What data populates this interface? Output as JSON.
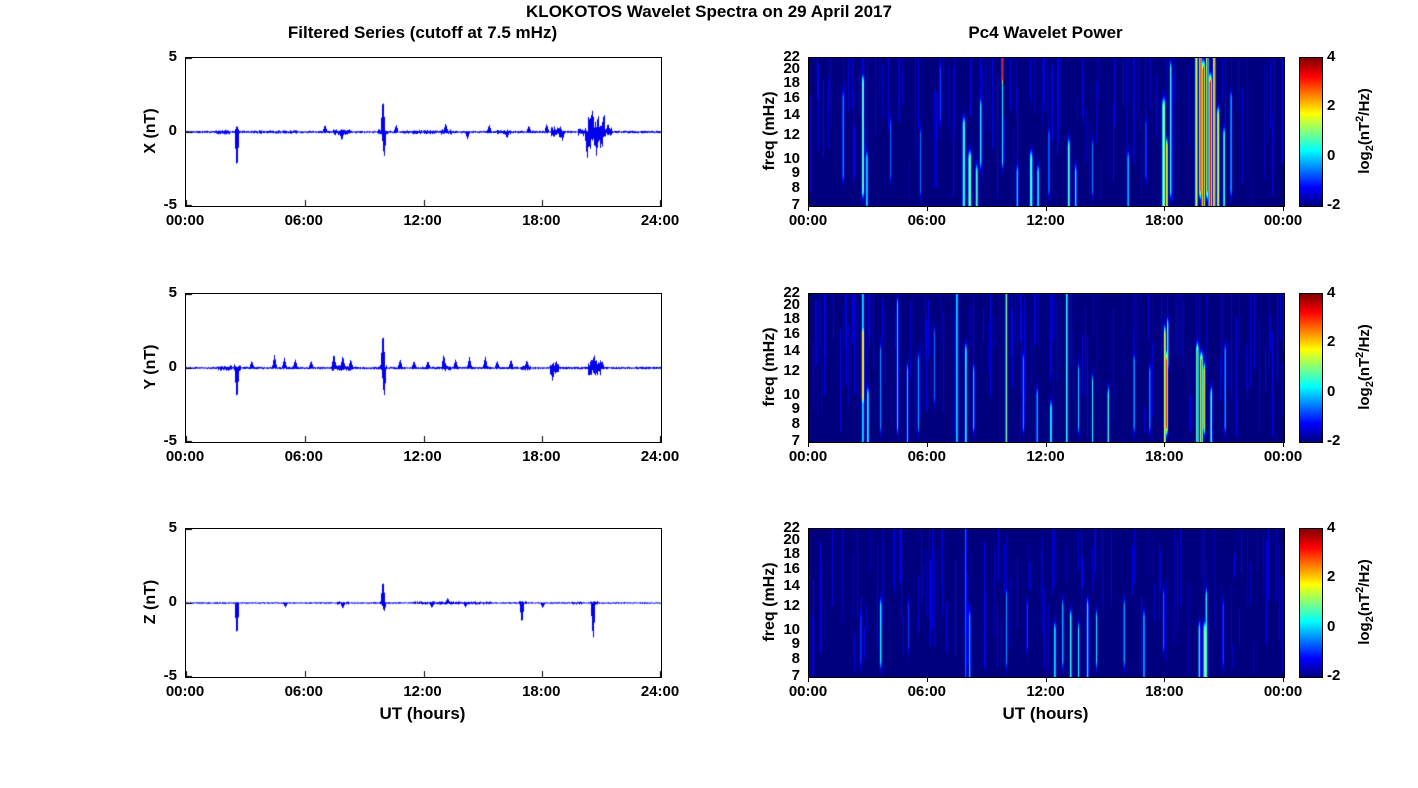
{
  "figure": {
    "title": "KLOKOTOS Wavelet Spectra on 29 April 2017",
    "left_column_title": "Filtered Series (cutoff at 7.5 mHz)",
    "right_column_title": "Pc4 Wavelet Power",
    "x_axis_label": "UT (hours)"
  },
  "colorbar": {
    "ticks": [
      "4",
      "2",
      "0",
      "-2"
    ],
    "clim": [
      -2,
      4
    ],
    "colormap": "jet",
    "label": {
      "prefix": "log",
      "sub": "2",
      "mid": "(nT",
      "sup": "2",
      "suffix": "/Hz)"
    }
  },
  "chart_data": [
    {
      "type": "line",
      "component": "X",
      "ylabel": "X (nT)",
      "ylim": [
        -5,
        5
      ],
      "yticks": [
        "5",
        "0",
        "-5"
      ],
      "xlim_hours": [
        0,
        24
      ],
      "xtick_labels": [
        "00:00",
        "06:00",
        "12:00",
        "18:00",
        "24:00"
      ],
      "line_color": "#0000ee",
      "base_noise_nT": 0.09,
      "noise_bursts": [
        [
          1.5,
          2.2,
          0.17
        ],
        [
          3.4,
          5.6,
          0.12
        ],
        [
          7.4,
          8.3,
          0.22
        ],
        [
          9.7,
          10.2,
          0.2
        ],
        [
          11.0,
          12.6,
          0.15
        ],
        [
          12.8,
          13.5,
          0.2
        ],
        [
          15.7,
          16.4,
          0.17
        ],
        [
          18.4,
          18.95,
          0.38
        ],
        [
          19.8,
          20.25,
          0.3
        ],
        [
          20.3,
          21.15,
          1.15
        ],
        [
          21.15,
          21.5,
          0.3
        ]
      ],
      "spikes": [
        [
          2.55,
          -2.6
        ],
        [
          2.55,
          0.45
        ],
        [
          7.0,
          0.5
        ],
        [
          7.85,
          -0.6
        ],
        [
          9.93,
          2.35
        ],
        [
          9.99,
          -1.8
        ],
        [
          10.6,
          0.5
        ],
        [
          13.1,
          0.6
        ],
        [
          14.2,
          -0.5
        ],
        [
          15.3,
          0.5
        ],
        [
          16.2,
          -0.45
        ],
        [
          17.3,
          0.45
        ],
        [
          18.2,
          0.55
        ],
        [
          19.0,
          -0.6
        ],
        [
          20.25,
          -1.9
        ],
        [
          20.5,
          1.6
        ],
        [
          20.72,
          -1.65
        ],
        [
          21.3,
          0.6
        ]
      ]
    },
    {
      "type": "line",
      "component": "Y",
      "ylabel": "Y (nT)",
      "ylim": [
        -5,
        5
      ],
      "yticks": [
        "5",
        "0",
        "-5"
      ],
      "xlim_hours": [
        0,
        24
      ],
      "xtick_labels": [
        "00:00",
        "06:00",
        "12:00",
        "18:00",
        "24:00"
      ],
      "line_color": "#0000ee",
      "base_noise_nT": 0.09,
      "noise_bursts": [
        [
          1.6,
          2.3,
          0.2
        ],
        [
          2.4,
          2.75,
          0.25
        ],
        [
          7.3,
          8.4,
          0.2
        ],
        [
          9.8,
          10.15,
          0.2
        ],
        [
          12.9,
          13.35,
          0.2
        ],
        [
          16.9,
          17.4,
          0.18
        ],
        [
          18.35,
          18.8,
          0.5
        ],
        [
          20.3,
          20.95,
          0.55
        ]
      ],
      "spikes": [
        [
          2.55,
          -2.25
        ],
        [
          3.3,
          0.5
        ],
        [
          4.45,
          0.9
        ],
        [
          4.95,
          0.7
        ],
        [
          5.5,
          0.6
        ],
        [
          6.3,
          0.5
        ],
        [
          7.45,
          1.0
        ],
        [
          7.9,
          0.85
        ],
        [
          8.3,
          0.6
        ],
        [
          9.93,
          2.5
        ],
        [
          9.99,
          -2.05
        ],
        [
          10.8,
          0.6
        ],
        [
          11.5,
          0.5
        ],
        [
          12.2,
          0.5
        ],
        [
          13.0,
          0.95
        ],
        [
          13.6,
          0.6
        ],
        [
          14.3,
          0.75
        ],
        [
          15.1,
          0.8
        ],
        [
          15.7,
          0.5
        ],
        [
          16.4,
          0.6
        ],
        [
          17.2,
          0.55
        ],
        [
          18.5,
          -0.9
        ],
        [
          20.6,
          0.95
        ],
        [
          21.0,
          0.5
        ]
      ]
    },
    {
      "type": "line",
      "component": "Z",
      "ylabel": "Z (nT)",
      "ylim": [
        -5,
        5
      ],
      "yticks": [
        "5",
        "0",
        "-5"
      ],
      "xlim_hours": [
        0,
        24
      ],
      "xtick_labels": [
        "00:00",
        "06:00",
        "12:00",
        "18:00",
        "24:00"
      ],
      "line_color": "#0000ee",
      "base_noise_nT": 0.06,
      "noise_bursts": [
        [
          7.6,
          8.2,
          0.11
        ],
        [
          9.8,
          10.1,
          0.12
        ],
        [
          11.5,
          15.5,
          0.11
        ],
        [
          16.8,
          17.2,
          0.14
        ],
        [
          19.5,
          20.0,
          0.11
        ],
        [
          20.4,
          20.8,
          0.16
        ]
      ],
      "spikes": [
        [
          2.55,
          -2.35
        ],
        [
          5.0,
          -0.3
        ],
        [
          7.9,
          -0.4
        ],
        [
          9.93,
          1.6
        ],
        [
          9.99,
          -0.6
        ],
        [
          12.4,
          -0.35
        ],
        [
          13.2,
          0.35
        ],
        [
          14.1,
          -0.3
        ],
        [
          16.95,
          -1.45
        ],
        [
          18.0,
          -0.35
        ],
        [
          20.55,
          -2.6
        ]
      ]
    },
    {
      "type": "heatmap",
      "component": "X",
      "ylabel": "freq (mHz)",
      "yscale": "log",
      "ylim_mhz": [
        7,
        22
      ],
      "yticks": [
        "22",
        "20",
        "18",
        "16",
        "14",
        "12",
        "10",
        "9",
        "8",
        "7"
      ],
      "xlim_hours": [
        0,
        24
      ],
      "xtick_labels": [
        "00:00",
        "06:00",
        "12:00",
        "18:00",
        "00:00"
      ],
      "clim": [
        -2,
        4
      ],
      "background_value": -2,
      "events": [
        [
          1.7,
          9,
          16,
          -0.3,
          0.05
        ],
        [
          2.7,
          8,
          18,
          1.2,
          0.06
        ],
        [
          2.9,
          7,
          10,
          0.4,
          0.05
        ],
        [
          4.1,
          9,
          13,
          -0.6,
          0.04
        ],
        [
          5.6,
          8,
          12,
          -0.5,
          0.04
        ],
        [
          6.6,
          14,
          20,
          -0.6,
          0.04
        ],
        [
          7.8,
          7,
          13,
          0.9,
          0.07
        ],
        [
          8.1,
          7,
          10,
          1.4,
          0.08
        ],
        [
          8.45,
          7,
          9,
          0.9,
          0.06
        ],
        [
          8.65,
          10,
          15,
          0.4,
          0.05
        ],
        [
          9.75,
          19,
          22,
          3.1,
          0.04
        ],
        [
          9.75,
          10,
          19,
          0.3,
          0.04
        ],
        [
          10.5,
          7,
          9,
          0.2,
          0.05
        ],
        [
          11.2,
          7,
          10,
          1.1,
          0.07
        ],
        [
          11.55,
          7,
          9,
          0.5,
          0.05
        ],
        [
          12.1,
          8,
          12,
          -0.2,
          0.04
        ],
        [
          13.1,
          7,
          11,
          0.9,
          0.06
        ],
        [
          13.45,
          7,
          9,
          0.4,
          0.05
        ],
        [
          14.3,
          8,
          11,
          -0.4,
          0.04
        ],
        [
          16.1,
          7,
          10,
          0.1,
          0.05
        ],
        [
          17.0,
          9,
          13,
          -0.5,
          0.04
        ],
        [
          17.9,
          7,
          15,
          1.7,
          0.08
        ],
        [
          18.05,
          7,
          11,
          2.1,
          0.05
        ],
        [
          18.25,
          8,
          20,
          0.7,
          0.05
        ],
        [
          19.55,
          7,
          22,
          1.8,
          0.06
        ],
        [
          19.75,
          8,
          22,
          2.8,
          0.06
        ],
        [
          19.9,
          7,
          20,
          3.4,
          0.08
        ],
        [
          20.1,
          8,
          22,
          3.1,
          0.06
        ],
        [
          20.25,
          7,
          18,
          3.5,
          0.08
        ],
        [
          20.45,
          7,
          22,
          2.4,
          0.06
        ],
        [
          20.65,
          7,
          14,
          1.8,
          0.06
        ],
        [
          20.95,
          7,
          12,
          0.9,
          0.05
        ],
        [
          21.3,
          8,
          16,
          0.2,
          0.04
        ]
      ]
    },
    {
      "type": "heatmap",
      "component": "Y",
      "ylabel": "freq (mHz)",
      "yscale": "log",
      "ylim_mhz": [
        7,
        22
      ],
      "yticks": [
        "22",
        "20",
        "18",
        "16",
        "14",
        "12",
        "10",
        "9",
        "8",
        "7"
      ],
      "xlim_hours": [
        0,
        24
      ],
      "xtick_labels": [
        "00:00",
        "06:00",
        "12:00",
        "18:00",
        "00:00"
      ],
      "clim": [
        -2,
        4
      ],
      "background_value": -2,
      "events": [
        [
          2.7,
          10,
          16,
          2.5,
          0.06
        ],
        [
          2.7,
          7,
          22,
          0.5,
          0.05
        ],
        [
          2.95,
          7,
          10,
          0.7,
          0.05
        ],
        [
          3.6,
          8,
          14,
          -0.2,
          0.04
        ],
        [
          4.45,
          8,
          20,
          0.2,
          0.04
        ],
        [
          4.95,
          7,
          12,
          0.1,
          0.04
        ],
        [
          5.5,
          8,
          13,
          -0.1,
          0.04
        ],
        [
          6.3,
          10,
          16,
          -0.4,
          0.04
        ],
        [
          7.45,
          7,
          22,
          0.4,
          0.05
        ],
        [
          7.9,
          7,
          14,
          0.7,
          0.05
        ],
        [
          8.3,
          8,
          12,
          0.2,
          0.04
        ],
        [
          9.95,
          7,
          22,
          1.1,
          0.05
        ],
        [
          10.8,
          8,
          13,
          -0.1,
          0.04
        ],
        [
          11.5,
          7,
          10,
          0.2,
          0.04
        ],
        [
          12.2,
          7,
          9,
          0.7,
          0.05
        ],
        [
          13.0,
          7,
          22,
          0.7,
          0.05
        ],
        [
          13.6,
          8,
          12,
          0.1,
          0.04
        ],
        [
          14.3,
          7,
          11,
          0.4,
          0.04
        ],
        [
          15.1,
          7,
          10,
          0.7,
          0.05
        ],
        [
          16.4,
          8,
          13,
          0.1,
          0.04
        ],
        [
          17.2,
          8,
          12,
          -0.1,
          0.04
        ],
        [
          17.95,
          7,
          16,
          1.9,
          0.05
        ],
        [
          18.05,
          8,
          13,
          3.4,
          0.05
        ],
        [
          18.1,
          13,
          17,
          1.4,
          0.04
        ],
        [
          19.6,
          7,
          14,
          2.6,
          0.06
        ],
        [
          19.8,
          7,
          13,
          2.9,
          0.07
        ],
        [
          19.95,
          8,
          12,
          2.1,
          0.05
        ],
        [
          20.3,
          7,
          10,
          1.1,
          0.05
        ],
        [
          21.0,
          8,
          14,
          0.1,
          0.04
        ]
      ]
    },
    {
      "type": "heatmap",
      "component": "Z",
      "ylabel": "freq (mHz)",
      "yscale": "log",
      "ylim_mhz": [
        7,
        22
      ],
      "yticks": [
        "22",
        "20",
        "18",
        "16",
        "14",
        "12",
        "10",
        "9",
        "8",
        "7"
      ],
      "xlim_hours": [
        0,
        24
      ],
      "xtick_labels": [
        "00:00",
        "06:00",
        "12:00",
        "18:00",
        "00:00"
      ],
      "clim": [
        -2,
        4
      ],
      "background_value": -2,
      "events": [
        [
          2.6,
          8,
          11,
          -0.6,
          0.04
        ],
        [
          3.6,
          8,
          12,
          0.4,
          0.05
        ],
        [
          5.0,
          9,
          12,
          -0.9,
          0.03
        ],
        [
          7.9,
          7,
          22,
          -0.4,
          0.04
        ],
        [
          8.1,
          7,
          11,
          0.2,
          0.04
        ],
        [
          9.95,
          8,
          13,
          -0.3,
          0.04
        ],
        [
          11.0,
          9,
          12,
          -0.7,
          0.03
        ],
        [
          12.4,
          7,
          10,
          0.5,
          0.05
        ],
        [
          12.8,
          8,
          12,
          0.2,
          0.04
        ],
        [
          13.2,
          7,
          11,
          0.7,
          0.05
        ],
        [
          13.6,
          7,
          10,
          0.4,
          0.04
        ],
        [
          14.05,
          7,
          12,
          0.5,
          0.05
        ],
        [
          14.5,
          8,
          11,
          0.2,
          0.04
        ],
        [
          15.9,
          8,
          12,
          0.1,
          0.04
        ],
        [
          16.9,
          7,
          11,
          0.3,
          0.04
        ],
        [
          17.9,
          9,
          13,
          -0.4,
          0.04
        ],
        [
          19.7,
          7,
          10,
          0.8,
          0.05
        ],
        [
          20.0,
          7,
          10,
          1.5,
          0.1
        ],
        [
          20.05,
          10,
          13,
          0.5,
          0.05
        ],
        [
          20.9,
          8,
          12,
          -0.6,
          0.04
        ]
      ]
    }
  ]
}
